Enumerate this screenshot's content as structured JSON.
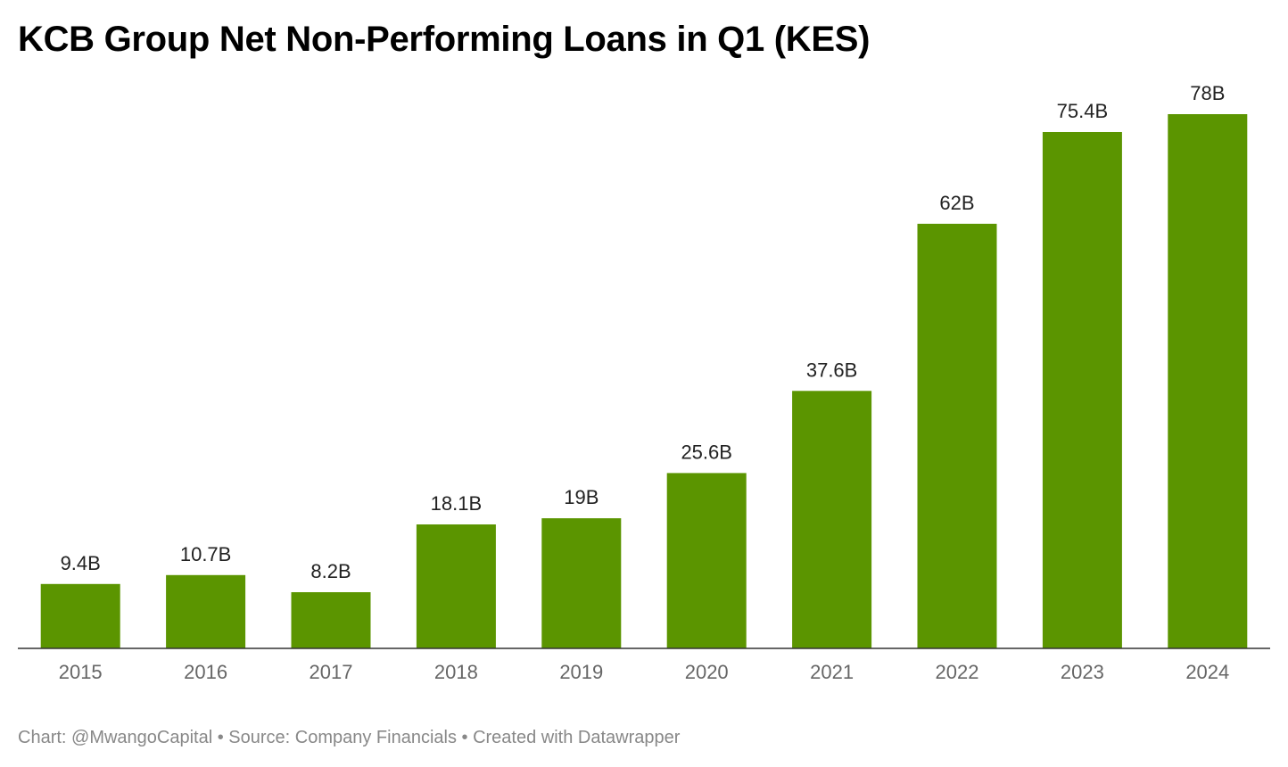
{
  "chart_data": {
    "type": "bar",
    "title": "KCB Group Net Non-Performing Loans in Q1 (KES)",
    "categories": [
      "2015",
      "2016",
      "2017",
      "2018",
      "2019",
      "2020",
      "2021",
      "2022",
      "2023",
      "2024"
    ],
    "values": [
      9.4,
      10.7,
      8.2,
      18.1,
      19,
      25.6,
      37.6,
      62,
      75.4,
      78
    ],
    "value_labels": [
      "9.4B",
      "10.7B",
      "8.2B",
      "18.1B",
      "19B",
      "25.6B",
      "37.6B",
      "62B",
      "75.4B",
      "78B"
    ],
    "unit": "B",
    "xlabel": "",
    "ylabel": "",
    "ylim": [
      0,
      78
    ],
    "grid": false,
    "legend": "none",
    "bar_color": "#5b9500"
  },
  "footer": {
    "text": "Chart: @MwangoCapital • Source: Company Financials • Created with Datawrapper"
  }
}
